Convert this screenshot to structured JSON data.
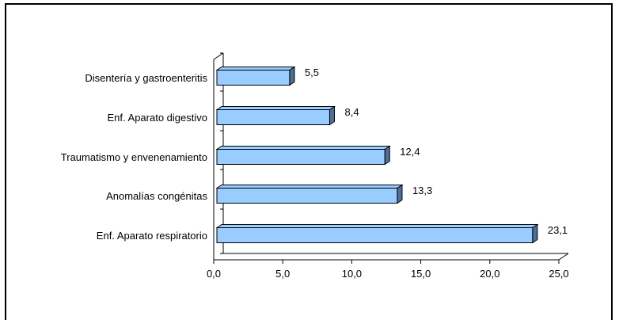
{
  "chart_data": {
    "type": "bar",
    "orientation": "horizontal",
    "categories": [
      "Disentería y gastroenteritis",
      "Enf. Aparato digestivo",
      "Traumatismo y envenenamiento",
      "Anomalías congénitas",
      "Enf. Aparato respiratorio"
    ],
    "values": [
      5.5,
      8.4,
      12.4,
      13.3,
      23.1
    ],
    "value_labels": [
      "5,5",
      "8,4",
      "12,4",
      "13,3",
      "23,1"
    ],
    "x_ticks": [
      "0,0",
      "5,0",
      "10,0",
      "15,0",
      "20,0",
      "25,0"
    ],
    "xlim": [
      0,
      25
    ],
    "grid": false,
    "legend": "none",
    "style": "3d",
    "bar_color": "#99ccff",
    "bar_side_color": "#4d6f99",
    "bar_edge_color": "#000000"
  }
}
